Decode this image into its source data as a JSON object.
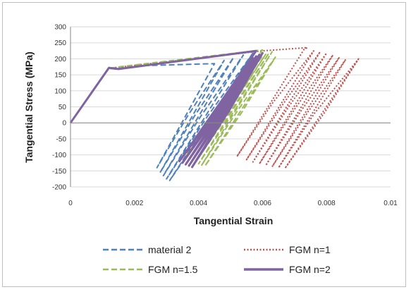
{
  "chart_data": {
    "type": "line",
    "xlabel": "Tangential Strain",
    "ylabel": "Tangential Stress (MPa)",
    "xlim": [
      0,
      0.01
    ],
    "ylim": [
      -200,
      300
    ],
    "x_ticks": [
      "0",
      "0.002",
      "0.004",
      "0.006",
      "0.008",
      "0.01"
    ],
    "y_ticks": [
      "300",
      "250",
      "200",
      "150",
      "100",
      "50",
      "0",
      "-50",
      "-100",
      "-150",
      "-200"
    ],
    "grid": "horizontal",
    "legend_position": "bottom",
    "series": [
      {
        "name": "material 2",
        "color": "#4f81bd",
        "dash": "dashed",
        "hysteresis": {
          "loading": [
            [
              0,
              0
            ],
            [
              0.0012,
              170
            ],
            [
              0.0014,
              168
            ],
            [
              0.002,
              178
            ]
          ],
          "cycles": [
            {
              "top": [
                0.0045,
                185
              ],
              "bottom": [
                0.0027,
                -140
              ]
            },
            {
              "top": [
                0.0048,
                195
              ],
              "bottom": [
                0.0028,
                -155
              ]
            },
            {
              "top": [
                0.0051,
                205
              ],
              "bottom": [
                0.0029,
                -165
              ]
            },
            {
              "top": [
                0.0054,
                212
              ],
              "bottom": [
                0.003,
                -175
              ]
            },
            {
              "top": [
                0.0057,
                218
              ],
              "bottom": [
                0.0031,
                -180
              ]
            }
          ]
        }
      },
      {
        "name": "FGM n=1",
        "color": "#c0504d",
        "dash": "dotted",
        "hysteresis": {
          "loading": [
            [
              0,
              0
            ],
            [
              0.0012,
              170
            ],
            [
              0.0016,
              175
            ],
            [
              0.006,
              225
            ],
            [
              0.0074,
              235
            ]
          ],
          "cycles": [
            {
              "top": [
                0.0073,
                230
              ],
              "bottom": [
                0.0052,
                -105
              ]
            },
            {
              "top": [
                0.0076,
                225
              ],
              "bottom": [
                0.0055,
                -115
              ]
            },
            {
              "top": [
                0.0078,
                222
              ],
              "bottom": [
                0.0057,
                -122
              ]
            },
            {
              "top": [
                0.008,
                218
              ],
              "bottom": [
                0.0059,
                -128
              ]
            },
            {
              "top": [
                0.0082,
                212
              ],
              "bottom": [
                0.0061,
                -133
              ]
            },
            {
              "top": [
                0.0084,
                205
              ],
              "bottom": [
                0.0063,
                -137
              ]
            },
            {
              "top": [
                0.0086,
                198
              ],
              "bottom": [
                0.0065,
                -140
              ]
            },
            {
              "top": [
                0.009,
                200
              ],
              "bottom": [
                0.0067,
                -142
              ]
            }
          ]
        }
      },
      {
        "name": "FGM n=1.5",
        "color": "#9bbb59",
        "dash": "dashed",
        "hysteresis": {
          "loading": [
            [
              0,
              0
            ],
            [
              0.0012,
              170
            ],
            [
              0.0016,
              176
            ],
            [
              0.006,
              228
            ]
          ],
          "cycles": [
            {
              "top": [
                0.0058,
                200
              ],
              "bottom": [
                0.0036,
                -105
              ]
            },
            {
              "top": [
                0.0059,
                205
              ],
              "bottom": [
                0.0037,
                -112
              ]
            },
            {
              "top": [
                0.006,
                210
              ],
              "bottom": [
                0.0038,
                -118
              ]
            },
            {
              "top": [
                0.0061,
                214
              ],
              "bottom": [
                0.0039,
                -123
              ]
            },
            {
              "top": [
                0.0062,
                218
              ],
              "bottom": [
                0.004,
                -128
              ]
            },
            {
              "top": [
                0.0063,
                222
              ],
              "bottom": [
                0.0041,
                -132
              ]
            },
            {
              "top": [
                0.0064,
                205
              ],
              "bottom": [
                0.0042,
                -135
              ]
            }
          ]
        }
      },
      {
        "name": "FGM n=2",
        "color": "#8064a2",
        "dash": "solid",
        "hysteresis": {
          "loading": [
            [
              0,
              0
            ],
            [
              0.0012,
              172
            ],
            [
              0.0015,
              168
            ],
            [
              0.0058,
              225
            ]
          ],
          "cycles": [
            {
              "top": [
                0.0056,
                195
              ],
              "bottom": [
                0.0034,
                -120
              ]
            },
            {
              "top": [
                0.0057,
                202
              ],
              "bottom": [
                0.0035,
                -125
              ]
            },
            {
              "top": [
                0.0058,
                208
              ],
              "bottom": [
                0.0036,
                -130
              ]
            },
            {
              "top": [
                0.0059,
                213
              ],
              "bottom": [
                0.0037,
                -134
              ]
            },
            {
              "top": [
                0.006,
                218
              ],
              "bottom": [
                0.0038,
                -138
              ]
            }
          ]
        }
      }
    ]
  }
}
